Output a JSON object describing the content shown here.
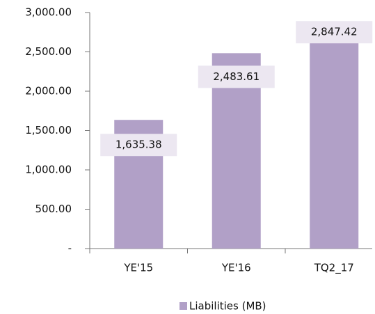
{
  "chart_data": {
    "type": "bar",
    "categories": [
      "YE'15",
      "YE'16",
      "TQ2_17"
    ],
    "series": [
      {
        "name": "Liabilities (MB)",
        "color": "#b1a0c7",
        "values": [
          1635.38,
          2483.61,
          2847.42
        ],
        "value_labels": [
          "1,635.38",
          "2,483.61",
          "2,847.42"
        ]
      }
    ],
    "ylim": [
      0,
      3000
    ],
    "yticks": [
      {
        "value": 0,
        "label": "-"
      },
      {
        "value": 500,
        "label": "500.00"
      },
      {
        "value": 1000,
        "label": "1,000.00"
      },
      {
        "value": 1500,
        "label": "1,500.00"
      },
      {
        "value": 2000,
        "label": "2,000.00"
      },
      {
        "value": 2500,
        "label": "2,500.00"
      },
      {
        "value": 3000,
        "label": "3,000.00"
      }
    ],
    "legend": "bottom"
  }
}
